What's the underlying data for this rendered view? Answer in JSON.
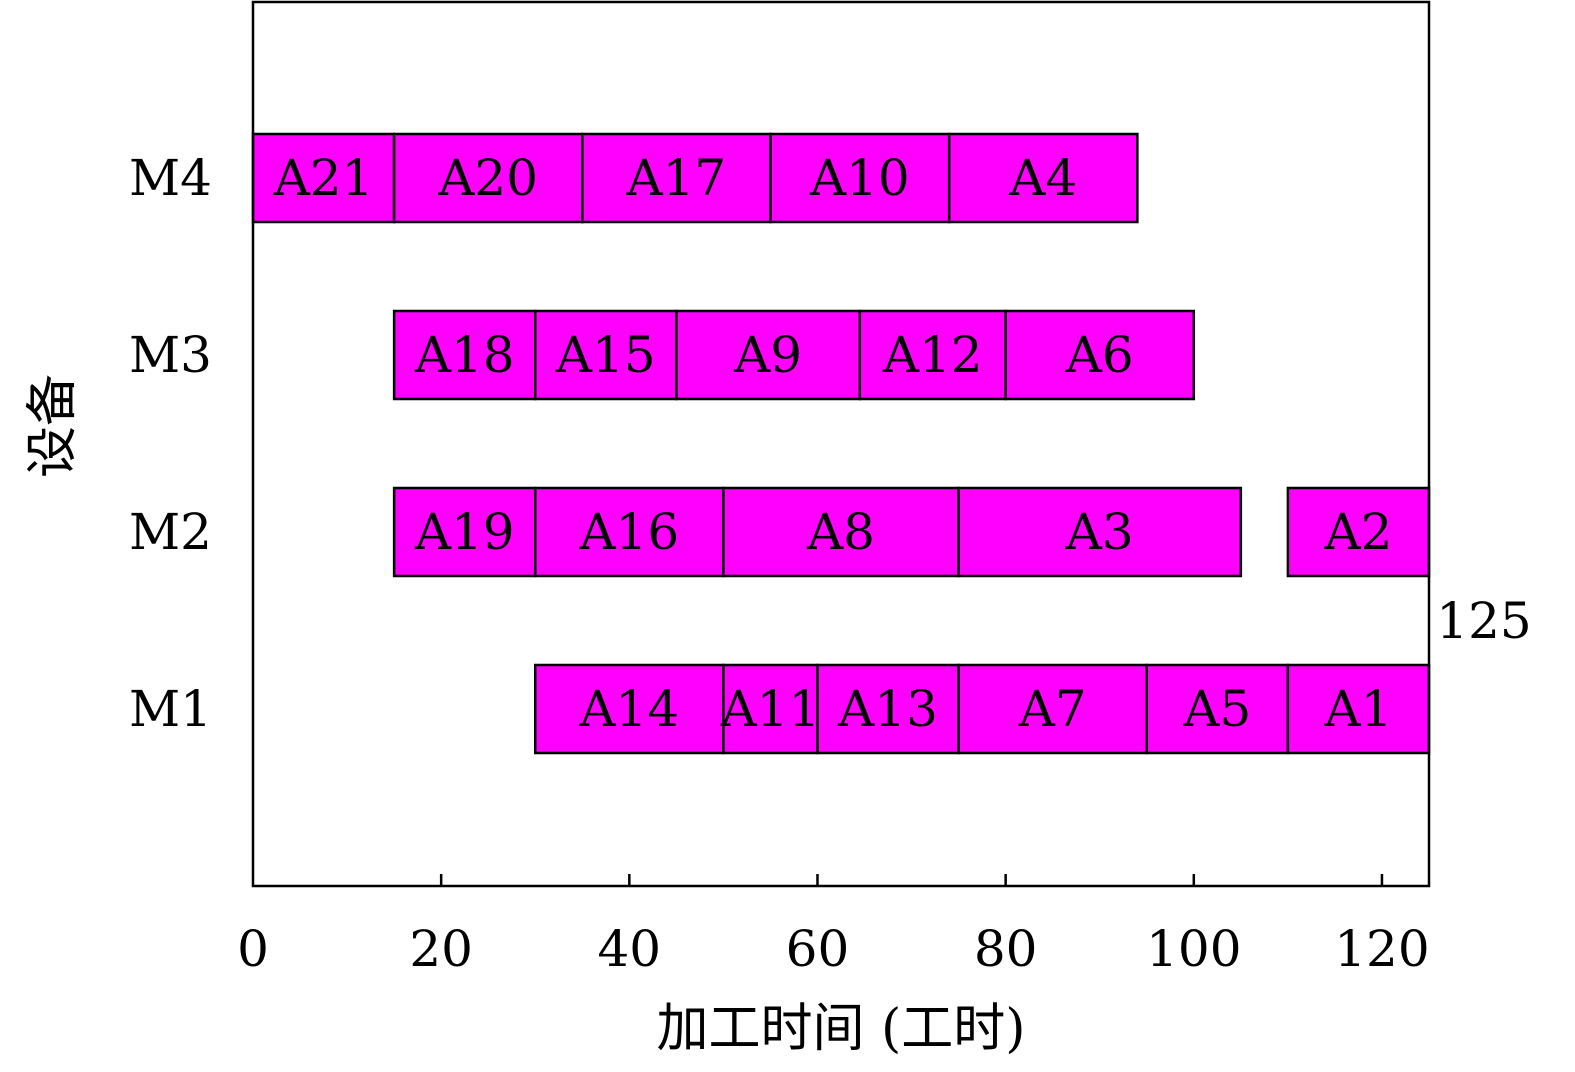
{
  "chart_data": {
    "type": "gantt",
    "xlabel": "加工时间 (工时)",
    "ylabel": "设备",
    "xlim": [
      0,
      125
    ],
    "xticks": [
      0,
      20,
      40,
      60,
      80,
      100,
      120
    ],
    "machines": [
      "M1",
      "M2",
      "M3",
      "M4"
    ],
    "bar_color": "#ff00ff",
    "annotation": "125",
    "tasks": [
      {
        "machine": "M4",
        "label": "A21",
        "start": 0,
        "end": 15
      },
      {
        "machine": "M4",
        "label": "A20",
        "start": 15,
        "end": 35
      },
      {
        "machine": "M4",
        "label": "A17",
        "start": 35,
        "end": 55
      },
      {
        "machine": "M4",
        "label": "A10",
        "start": 55,
        "end": 74
      },
      {
        "machine": "M4",
        "label": "A4",
        "start": 74,
        "end": 94
      },
      {
        "machine": "M3",
        "label": "A18",
        "start": 15,
        "end": 30
      },
      {
        "machine": "M3",
        "label": "A15",
        "start": 30,
        "end": 45
      },
      {
        "machine": "M3",
        "label": "A9",
        "start": 45,
        "end": 64.5
      },
      {
        "machine": "M3",
        "label": "A12",
        "start": 64.5,
        "end": 80
      },
      {
        "machine": "M3",
        "label": "A6",
        "start": 80,
        "end": 100
      },
      {
        "machine": "M2",
        "label": "A19",
        "start": 15,
        "end": 30
      },
      {
        "machine": "M2",
        "label": "A16",
        "start": 30,
        "end": 50
      },
      {
        "machine": "M2",
        "label": "A8",
        "start": 50,
        "end": 75
      },
      {
        "machine": "M2",
        "label": "A3",
        "start": 75,
        "end": 105
      },
      {
        "machine": "M2",
        "label": "A2",
        "start": 110,
        "end": 125
      },
      {
        "machine": "M1",
        "label": "A14",
        "start": 30,
        "end": 50
      },
      {
        "machine": "M1",
        "label": "A11",
        "start": 50,
        "end": 60
      },
      {
        "machine": "M1",
        "label": "A13",
        "start": 60,
        "end": 75
      },
      {
        "machine": "M1",
        "label": "A7",
        "start": 75,
        "end": 95
      },
      {
        "machine": "M1",
        "label": "A5",
        "start": 95,
        "end": 110
      },
      {
        "machine": "M1",
        "label": "A1",
        "start": 110,
        "end": 125
      }
    ]
  }
}
